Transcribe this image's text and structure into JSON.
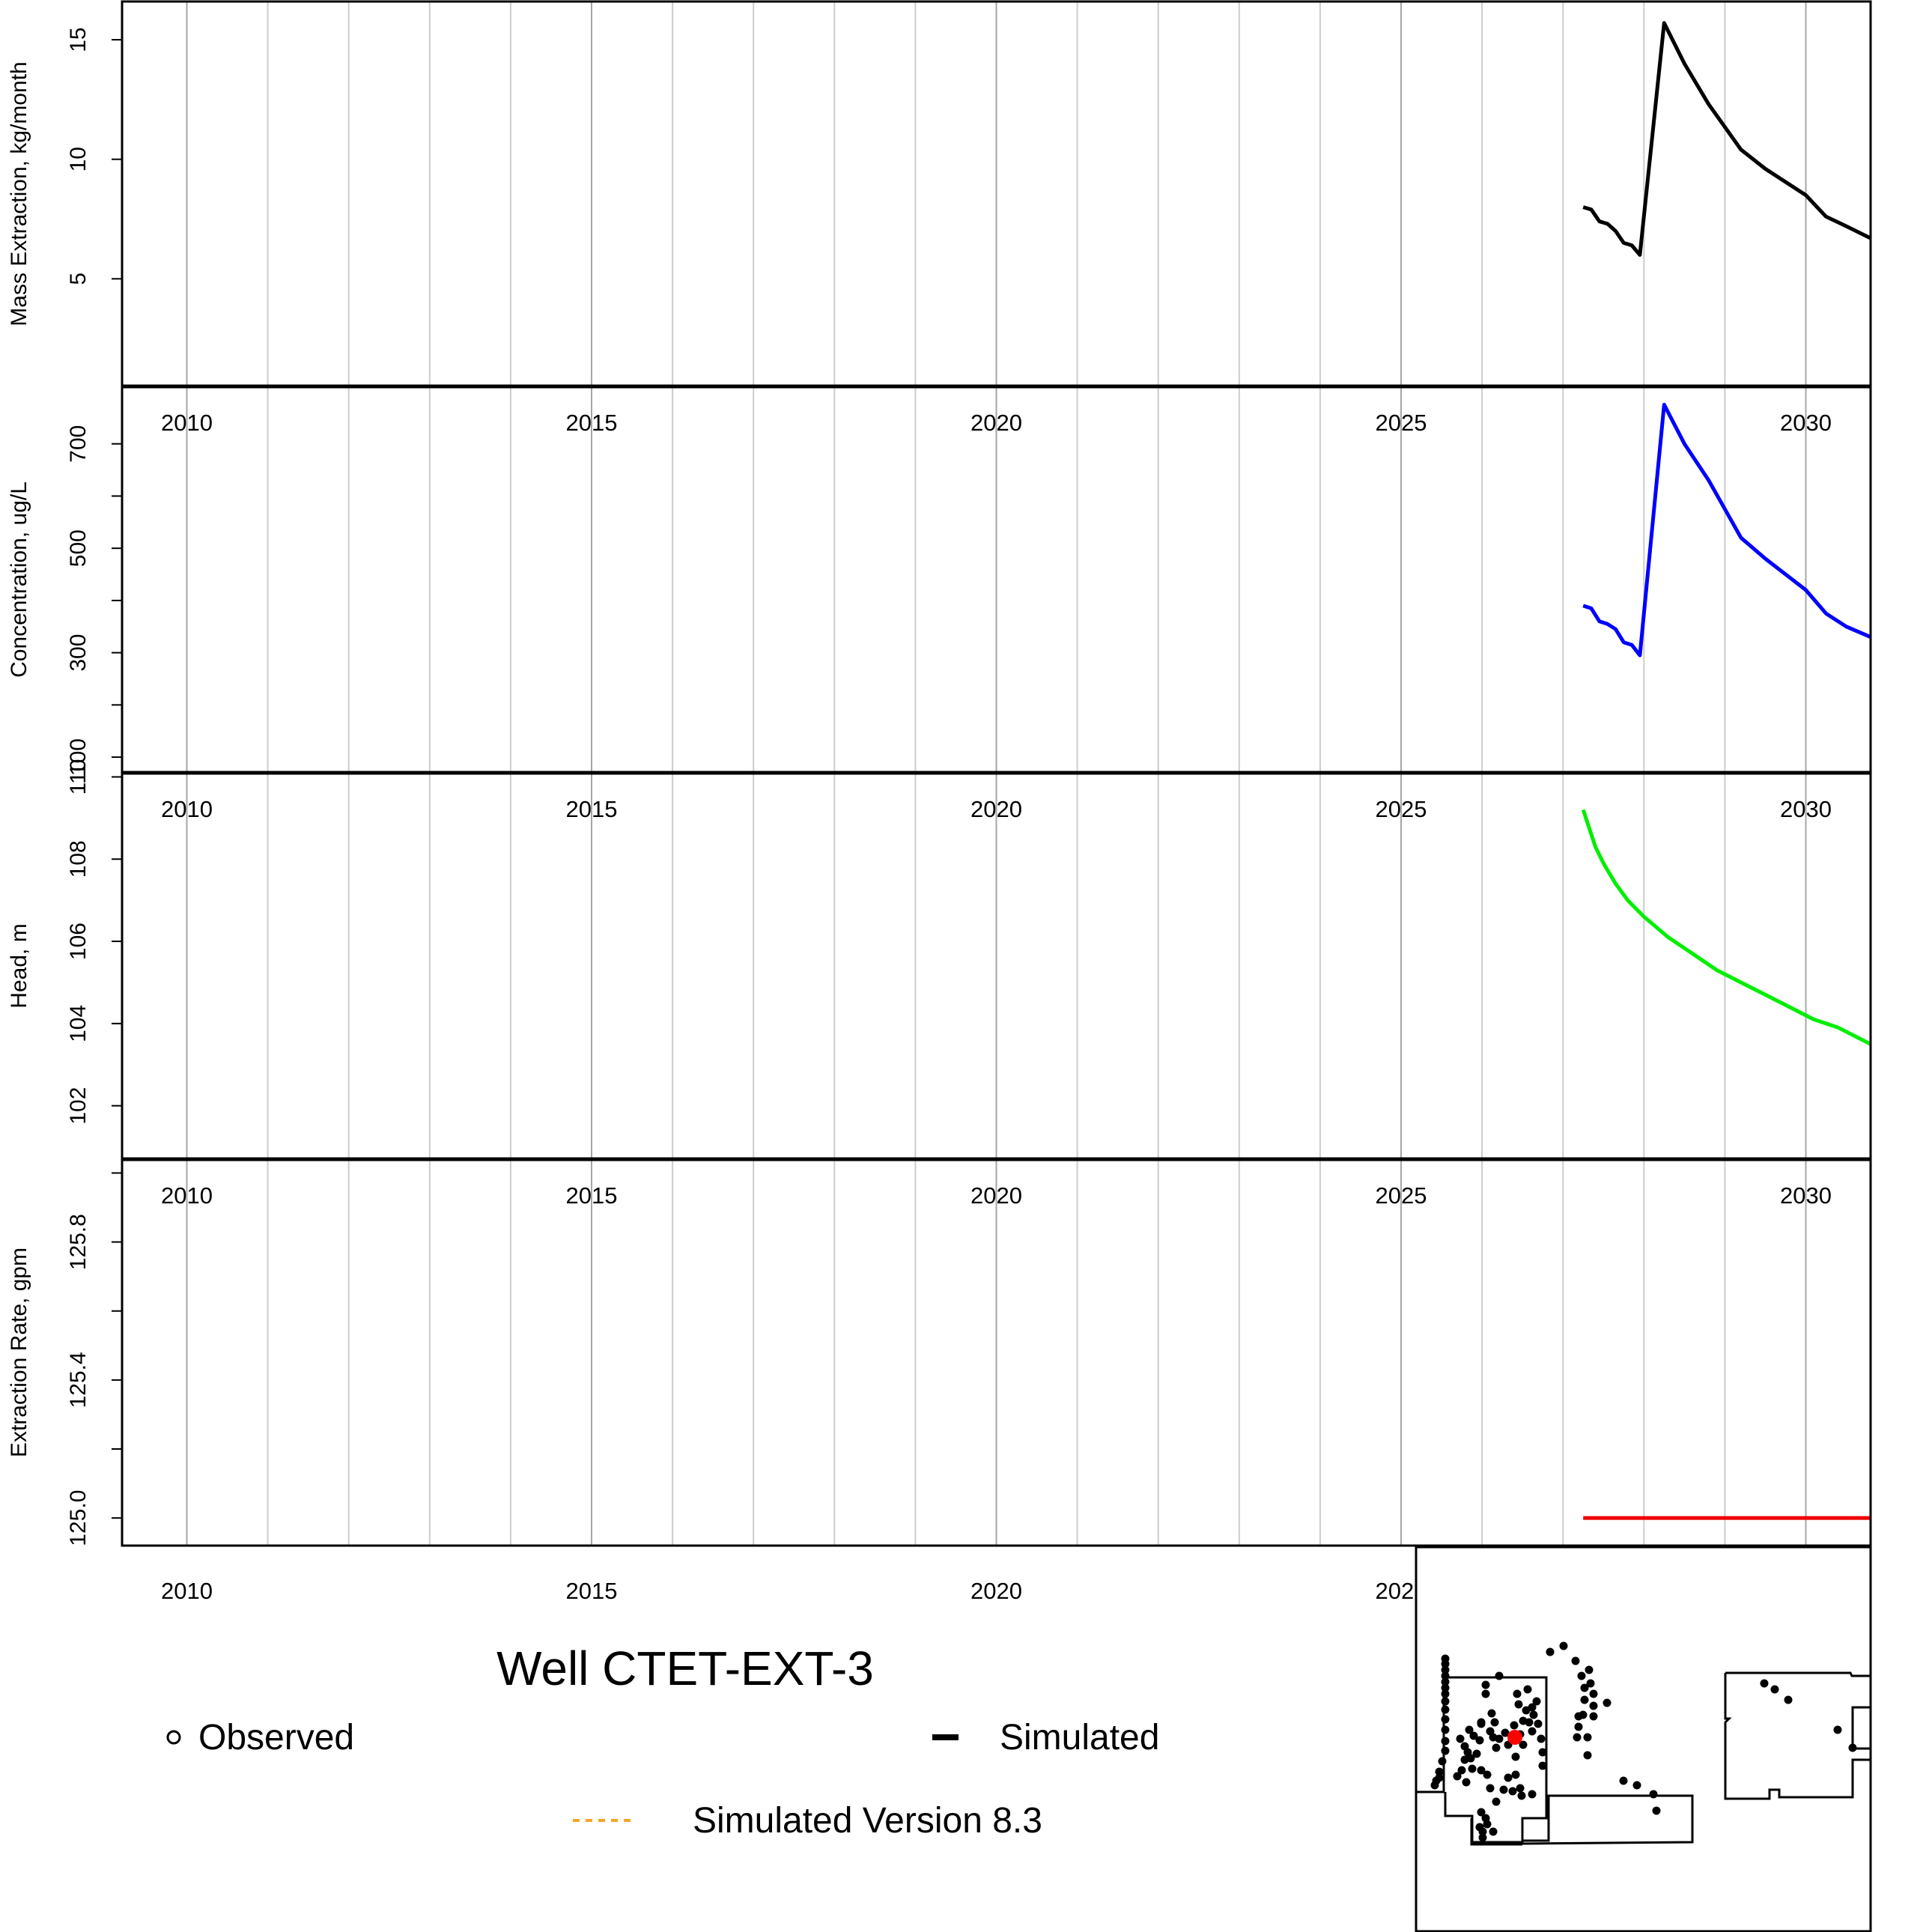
{
  "title": "Well CTET-EXT-3",
  "legend": {
    "observed": "Observed",
    "simulated": "Simulated",
    "simulated_v83": "Simulated Version 8.3",
    "simulated_v83_color": "#f5a623"
  },
  "chart_data": [
    {
      "type": "line",
      "id": "mass",
      "title": "",
      "xlabel": "",
      "ylabel": "Mass Extraction, kg/month",
      "xlim": [
        2009.2,
        2030.8
      ],
      "ylim": [
        0.5,
        16.6
      ],
      "yticks": [
        5,
        10,
        15
      ],
      "yticklabels": [
        "5",
        "10",
        "15"
      ],
      "x_tick_labels": [],
      "color": "#000000",
      "series": [
        {
          "x": [
            2027.25,
            2027.35,
            2027.45,
            2027.55,
            2027.65,
            2027.75,
            2027.85,
            2027.95,
            2028.25,
            2028.5,
            2028.8,
            2029.2,
            2029.5,
            2030.0,
            2030.25,
            2030.5,
            2030.8
          ],
          "values": [
            8.0,
            7.9,
            7.4,
            7.3,
            7.0,
            6.5,
            6.4,
            6.0,
            15.7,
            14.0,
            12.3,
            10.4,
            9.6,
            8.5,
            7.6,
            7.2,
            6.7
          ]
        }
      ]
    },
    {
      "type": "line",
      "id": "concentration",
      "title": "",
      "xlabel": "",
      "ylabel": "Concentration, ug/L",
      "xlim": [
        2009.2,
        2030.8
      ],
      "ylim": [
        70,
        810
      ],
      "yticks": [
        100,
        200,
        300,
        400,
        500,
        600,
        700
      ],
      "yticklabels": [
        "100",
        "",
        "300",
        "",
        "500",
        "",
        "700"
      ],
      "x_tick_labels": [
        "2010",
        "2015",
        "2020",
        "2025",
        "2030"
      ],
      "color": "#0000ff",
      "series": [
        {
          "x": [
            2027.25,
            2027.35,
            2027.45,
            2027.55,
            2027.65,
            2027.75,
            2027.85,
            2027.95,
            2028.25,
            2028.5,
            2028.8,
            2029.2,
            2029.5,
            2030.0,
            2030.25,
            2030.5,
            2030.8
          ],
          "values": [
            390,
            385,
            360,
            355,
            345,
            320,
            315,
            295,
            775,
            700,
            630,
            520,
            480,
            420,
            375,
            350,
            330
          ]
        }
      ]
    },
    {
      "type": "line",
      "id": "head",
      "title": "",
      "xlabel": "",
      "ylabel": "Head, m",
      "xlim": [
        2009.2,
        2030.8
      ],
      "ylim": [
        100.7,
        110.1
      ],
      "yticks": [
        102,
        104,
        106,
        108,
        110
      ],
      "yticklabels": [
        "102",
        "104",
        "106",
        "108",
        "110"
      ],
      "x_tick_labels": [
        "2010",
        "2015",
        "2020",
        "2025",
        "2030"
      ],
      "color": "#00ee00",
      "series": [
        {
          "x": [
            2027.25,
            2027.3,
            2027.4,
            2027.5,
            2027.65,
            2027.8,
            2028.0,
            2028.3,
            2028.6,
            2028.9,
            2029.2,
            2029.5,
            2029.8,
            2030.1,
            2030.4,
            2030.6,
            2030.8
          ],
          "values": [
            109.2,
            108.9,
            108.3,
            107.9,
            107.4,
            107.0,
            106.6,
            106.1,
            105.7,
            105.3,
            105.0,
            104.7,
            104.4,
            104.1,
            103.9,
            103.7,
            103.5
          ]
        }
      ]
    },
    {
      "type": "line",
      "id": "extraction",
      "title": "",
      "xlabel": "",
      "ylabel": "Extraction Rate, gpm",
      "xlim": [
        2009.2,
        2030.8
      ],
      "ylim": [
        124.92,
        126.04
      ],
      "yticks": [
        125.0,
        125.2,
        125.4,
        125.6,
        125.8,
        126.0
      ],
      "yticklabels": [
        "125.0",
        "",
        "125.4",
        "",
        "125.8",
        ""
      ],
      "x_tick_labels": [
        "2010",
        "2015",
        "2020",
        "2025",
        "2030"
      ],
      "color": "#ee0000",
      "series": [
        {
          "x": [
            2027.25,
            2030.8
          ],
          "values": [
            125.0,
            125.0
          ]
        }
      ]
    }
  ],
  "inset_map": {
    "highlight_color": "#ff0000",
    "point_color": "#000000"
  }
}
